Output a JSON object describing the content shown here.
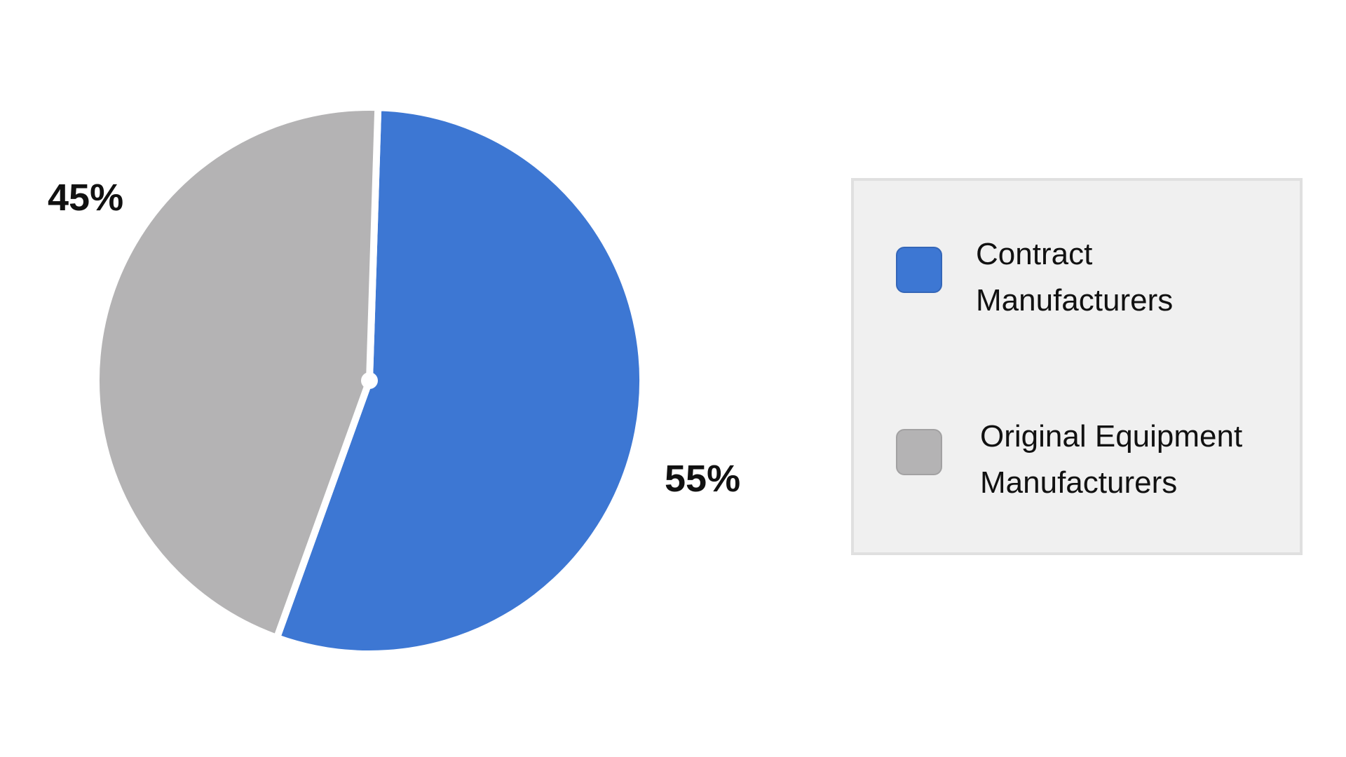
{
  "chart_data": {
    "type": "pie",
    "title": "",
    "legend_position": "right",
    "slices": [
      {
        "name": "Contract\nManufacturers",
        "value": 55,
        "label": "55%",
        "color": "#3d77d3"
      },
      {
        "name": "Original Equipment\nManufacturers",
        "value": 45,
        "label": "45%",
        "color": "#b4b3b4"
      }
    ]
  }
}
